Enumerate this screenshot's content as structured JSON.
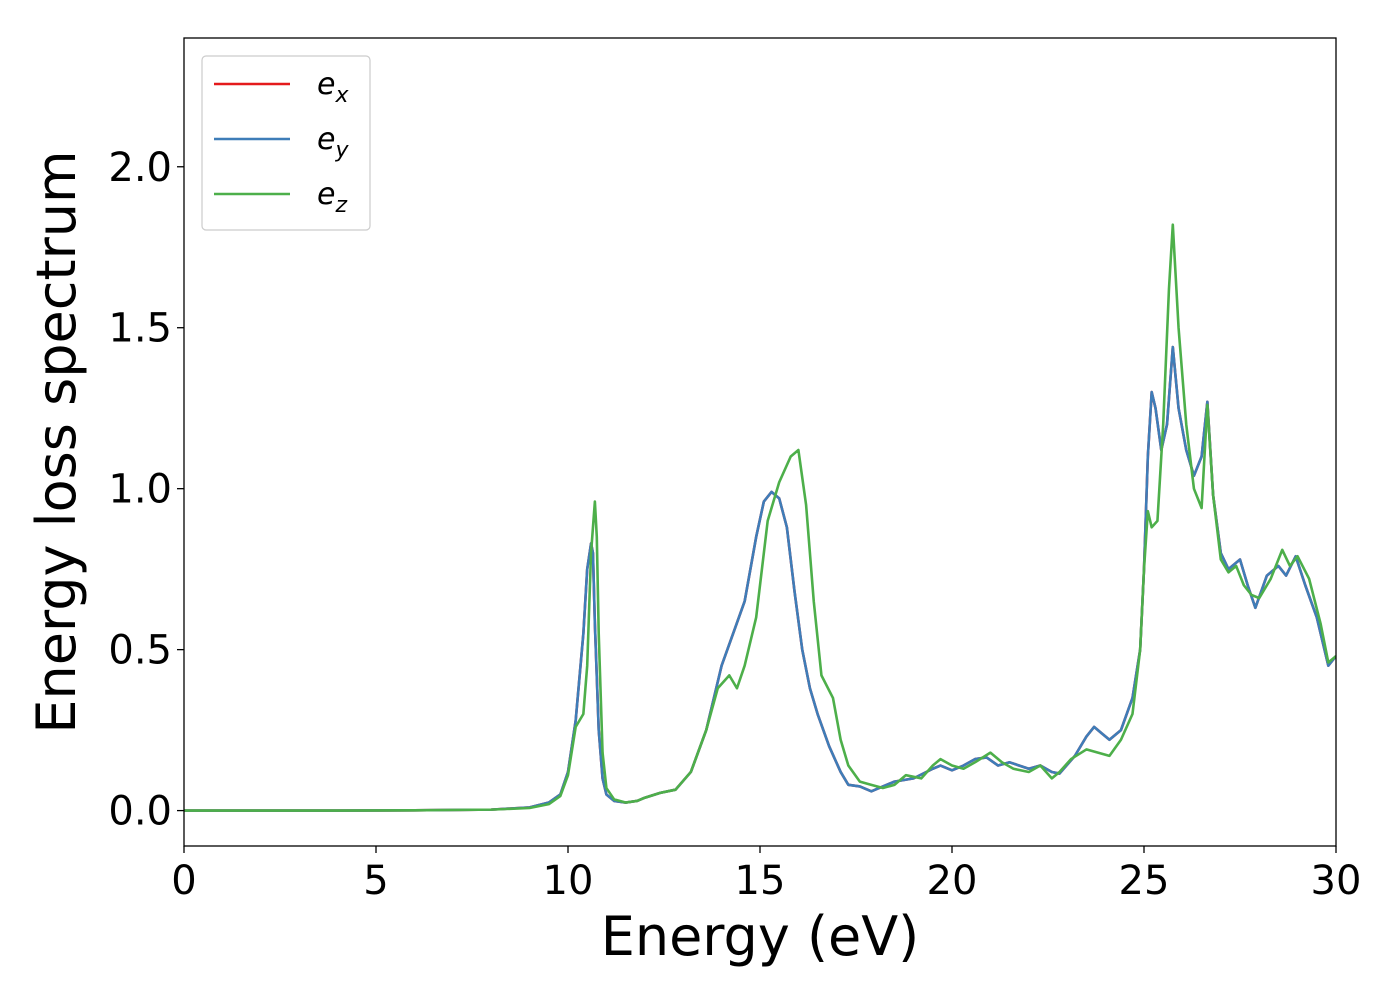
{
  "chart_data": {
    "type": "line",
    "xlabel": "Energy (eV)",
    "ylabel": "Energy loss spectrum",
    "xlim": [
      0,
      30
    ],
    "ylim": [
      -0.11,
      2.4
    ],
    "xticks": [
      0,
      5,
      10,
      15,
      20,
      25,
      30
    ],
    "xtick_labels": [
      "0",
      "5",
      "10",
      "15",
      "20",
      "25",
      "30"
    ],
    "yticks": [
      0.0,
      0.5,
      1.0,
      1.5,
      2.0
    ],
    "ytick_labels": [
      "0.0",
      "0.5",
      "1.0",
      "1.5",
      "2.0"
    ],
    "grid": false,
    "legend_position": "top-left",
    "series": [
      {
        "name": "e",
        "subscript": "x",
        "color": "#e41a1c",
        "x": [
          0,
          2,
          4,
          6,
          8,
          9,
          9.5,
          9.8,
          10.0,
          10.2,
          10.4,
          10.5,
          10.6,
          10.65,
          10.7,
          10.8,
          10.9,
          11.0,
          11.2,
          11.5,
          11.8,
          12.0,
          12.4,
          12.8,
          13.2,
          13.6,
          14.0,
          14.3,
          14.6,
          14.9,
          15.1,
          15.3,
          15.5,
          15.7,
          15.9,
          16.1,
          16.3,
          16.5,
          16.8,
          17.1,
          17.3,
          17.6,
          17.9,
          18.1,
          18.5,
          19.0,
          19.5,
          19.7,
          20.0,
          20.3,
          20.6,
          20.9,
          21.2,
          21.5,
          22.0,
          22.3,
          22.6,
          22.8,
          23.2,
          23.5,
          23.7,
          23.9,
          24.1,
          24.4,
          24.7,
          24.9,
          25.0,
          25.1,
          25.2,
          25.3,
          25.45,
          25.6,
          25.75,
          25.9,
          26.1,
          26.3,
          26.5,
          26.65,
          26.8,
          27.0,
          27.2,
          27.5,
          27.7,
          27.9,
          28.2,
          28.5,
          28.7,
          28.95,
          29.2,
          29.5,
          29.8,
          30.0
        ],
        "y": [
          0.0,
          0.0,
          0.0,
          0.001,
          0.003,
          0.01,
          0.025,
          0.05,
          0.12,
          0.28,
          0.55,
          0.75,
          0.83,
          0.8,
          0.58,
          0.25,
          0.1,
          0.05,
          0.03,
          0.025,
          0.03,
          0.04,
          0.055,
          0.065,
          0.12,
          0.25,
          0.45,
          0.55,
          0.65,
          0.85,
          0.96,
          0.99,
          0.97,
          0.88,
          0.68,
          0.5,
          0.38,
          0.3,
          0.2,
          0.12,
          0.08,
          0.075,
          0.06,
          0.07,
          0.09,
          0.1,
          0.13,
          0.14,
          0.125,
          0.14,
          0.16,
          0.165,
          0.14,
          0.15,
          0.13,
          0.14,
          0.12,
          0.115,
          0.17,
          0.23,
          0.26,
          0.24,
          0.22,
          0.25,
          0.35,
          0.5,
          0.75,
          1.1,
          1.3,
          1.25,
          1.12,
          1.2,
          1.44,
          1.25,
          1.12,
          1.04,
          1.1,
          1.27,
          0.98,
          0.8,
          0.75,
          0.78,
          0.7,
          0.63,
          0.73,
          0.76,
          0.73,
          0.79,
          0.7,
          0.6,
          0.45,
          0.48
        ]
      },
      {
        "name": "e",
        "subscript": "y",
        "color": "#3e7db8",
        "x": [
          0,
          2,
          4,
          6,
          8,
          9,
          9.5,
          9.8,
          10.0,
          10.2,
          10.4,
          10.5,
          10.6,
          10.65,
          10.7,
          10.8,
          10.9,
          11.0,
          11.2,
          11.5,
          11.8,
          12.0,
          12.4,
          12.8,
          13.2,
          13.6,
          14.0,
          14.3,
          14.6,
          14.9,
          15.1,
          15.3,
          15.5,
          15.7,
          15.9,
          16.1,
          16.3,
          16.5,
          16.8,
          17.1,
          17.3,
          17.6,
          17.9,
          18.1,
          18.5,
          19.0,
          19.5,
          19.7,
          20.0,
          20.3,
          20.6,
          20.9,
          21.2,
          21.5,
          22.0,
          22.3,
          22.6,
          22.8,
          23.2,
          23.5,
          23.7,
          23.9,
          24.1,
          24.4,
          24.7,
          24.9,
          25.0,
          25.1,
          25.2,
          25.3,
          25.45,
          25.6,
          25.75,
          25.9,
          26.1,
          26.3,
          26.5,
          26.65,
          26.8,
          27.0,
          27.2,
          27.5,
          27.7,
          27.9,
          28.2,
          28.5,
          28.7,
          28.95,
          29.2,
          29.5,
          29.8,
          30.0
        ],
        "y": [
          0.0,
          0.0,
          0.0,
          0.001,
          0.003,
          0.01,
          0.025,
          0.05,
          0.12,
          0.28,
          0.55,
          0.75,
          0.83,
          0.8,
          0.58,
          0.25,
          0.1,
          0.05,
          0.03,
          0.025,
          0.03,
          0.04,
          0.055,
          0.065,
          0.12,
          0.25,
          0.45,
          0.55,
          0.65,
          0.85,
          0.96,
          0.99,
          0.97,
          0.88,
          0.68,
          0.5,
          0.38,
          0.3,
          0.2,
          0.12,
          0.08,
          0.075,
          0.06,
          0.07,
          0.09,
          0.1,
          0.13,
          0.14,
          0.125,
          0.14,
          0.16,
          0.165,
          0.14,
          0.15,
          0.13,
          0.14,
          0.12,
          0.115,
          0.17,
          0.23,
          0.26,
          0.24,
          0.22,
          0.25,
          0.35,
          0.5,
          0.75,
          1.1,
          1.3,
          1.25,
          1.12,
          1.2,
          1.44,
          1.25,
          1.12,
          1.04,
          1.1,
          1.27,
          0.98,
          0.8,
          0.75,
          0.78,
          0.7,
          0.63,
          0.73,
          0.76,
          0.73,
          0.79,
          0.7,
          0.6,
          0.45,
          0.48
        ]
      },
      {
        "name": "e",
        "subscript": "z",
        "color": "#4daf4a",
        "x": [
          0,
          2,
          4,
          6,
          8,
          9,
          9.5,
          9.8,
          10.0,
          10.2,
          10.4,
          10.5,
          10.6,
          10.7,
          10.75,
          10.8,
          10.9,
          11.0,
          11.2,
          11.5,
          11.8,
          12.0,
          12.4,
          12.8,
          13.2,
          13.6,
          13.9,
          14.2,
          14.4,
          14.6,
          14.9,
          15.2,
          15.5,
          15.8,
          16.0,
          16.2,
          16.4,
          16.6,
          16.9,
          17.1,
          17.3,
          17.6,
          17.9,
          18.2,
          18.5,
          18.8,
          19.2,
          19.5,
          19.7,
          20.0,
          20.3,
          20.6,
          21.0,
          21.3,
          21.6,
          22.0,
          22.3,
          22.6,
          22.8,
          23.1,
          23.5,
          23.8,
          24.1,
          24.4,
          24.7,
          24.9,
          25.0,
          25.1,
          25.2,
          25.35,
          25.5,
          25.65,
          25.75,
          25.9,
          26.1,
          26.3,
          26.5,
          26.65,
          26.8,
          27.0,
          27.2,
          27.4,
          27.6,
          27.8,
          28.0,
          28.3,
          28.6,
          28.8,
          29.0,
          29.3,
          29.6,
          29.8,
          30.0
        ],
        "y": [
          0.0,
          0.0,
          0.0,
          0.001,
          0.003,
          0.008,
          0.02,
          0.045,
          0.11,
          0.26,
          0.3,
          0.45,
          0.8,
          0.96,
          0.85,
          0.55,
          0.18,
          0.07,
          0.035,
          0.025,
          0.03,
          0.04,
          0.055,
          0.065,
          0.12,
          0.25,
          0.38,
          0.42,
          0.38,
          0.45,
          0.6,
          0.9,
          1.02,
          1.1,
          1.12,
          0.95,
          0.65,
          0.42,
          0.35,
          0.22,
          0.14,
          0.09,
          0.08,
          0.07,
          0.08,
          0.11,
          0.1,
          0.14,
          0.16,
          0.14,
          0.13,
          0.15,
          0.18,
          0.15,
          0.13,
          0.12,
          0.14,
          0.1,
          0.12,
          0.16,
          0.19,
          0.18,
          0.17,
          0.22,
          0.3,
          0.5,
          0.75,
          0.93,
          0.88,
          0.9,
          1.2,
          1.62,
          1.82,
          1.5,
          1.2,
          1.0,
          0.94,
          1.26,
          0.98,
          0.78,
          0.74,
          0.76,
          0.7,
          0.67,
          0.66,
          0.72,
          0.81,
          0.76,
          0.79,
          0.72,
          0.58,
          0.46,
          0.48
        ]
      }
    ]
  }
}
